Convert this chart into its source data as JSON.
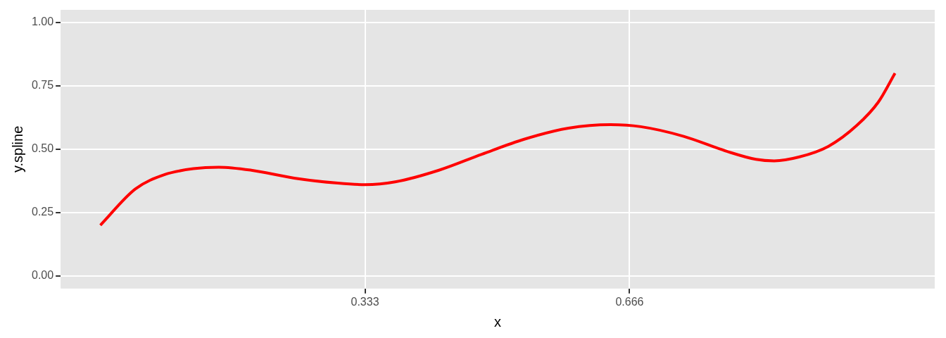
{
  "chart_data": {
    "type": "line",
    "xlabel": "x",
    "ylabel": "y.spline",
    "x": [
      0,
      0.044,
      0.081,
      0.117,
      0.149,
      0.19,
      0.244,
      0.299,
      0.333,
      0.371,
      0.426,
      0.48,
      0.534,
      0.589,
      0.642,
      0.68,
      0.734,
      0.789,
      0.825,
      0.848,
      0.879,
      0.916,
      0.952,
      0.979,
      1
    ],
    "series": [
      {
        "color": "#ff0000",
        "values": [
          0.2,
          0.343,
          0.4,
          0.423,
          0.429,
          0.417,
          0.386,
          0.366,
          0.36,
          0.371,
          0.417,
          0.48,
          0.54,
          0.583,
          0.597,
          0.589,
          0.551,
          0.491,
          0.46,
          0.454,
          0.469,
          0.511,
          0.594,
          0.686,
          0.8
        ]
      }
    ],
    "xlim": [
      -0.05,
      1.05
    ],
    "xticks": [
      0.333,
      0.666
    ],
    "ylim": [
      -0.05,
      1.05
    ],
    "yticks": [
      {
        "value": 0,
        "label": "0.00"
      },
      {
        "value": 0.25,
        "label": "0.25"
      },
      {
        "value": 0.5,
        "label": "0.50"
      },
      {
        "value": 0.75,
        "label": "0.75"
      },
      {
        "value": 1,
        "label": "1.00"
      }
    ],
    "grid": true,
    "legend": false,
    "marker": "none",
    "line_style": "solid"
  }
}
